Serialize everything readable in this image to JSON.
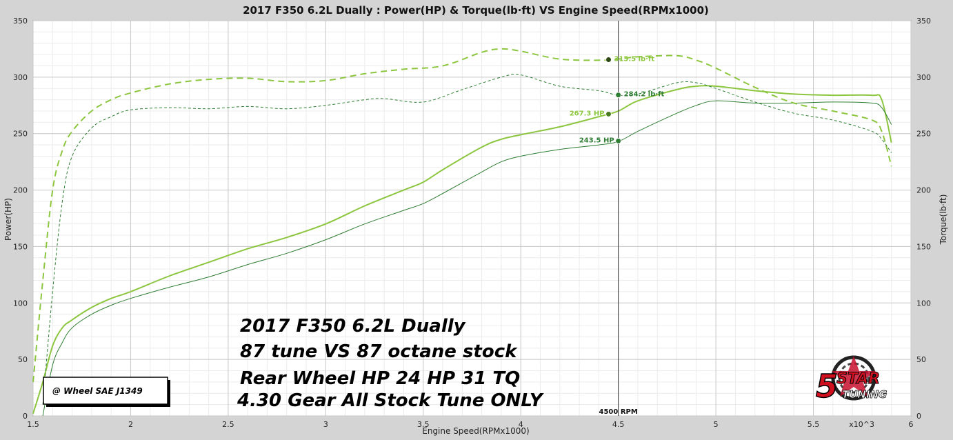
{
  "chart_data": {
    "type": "line",
    "title": "2017 F350 6.2L Dually : Power(HP) & Torque(lb·ft) VS Engine Speed(RPMx1000)",
    "xlabel": "Engine Speed(RPMx1000)",
    "ylabel_left": "Power(HP)",
    "ylabel_right": "Torque(lb·ft)",
    "x_multiplier_label": "x10^3",
    "xlim": [
      1.5,
      6
    ],
    "ylim_left": [
      0,
      350
    ],
    "ylim_right": [
      0,
      350
    ],
    "x_ticks": [
      "1.5",
      "2",
      "2.5",
      "3",
      "3.5",
      "4",
      "4.5",
      "5",
      "5.5",
      "6"
    ],
    "y_ticks": [
      "0",
      "50",
      "100",
      "150",
      "200",
      "250",
      "300",
      "350"
    ],
    "grid": true,
    "legend": "none",
    "colors": {
      "tuned": "#8cc63f",
      "stock": "#2e7d32",
      "cursor": "#333333",
      "plot_bg": "#ffffff",
      "page_bg": "#d4d4d4"
    },
    "series": [
      {
        "name": "87 tune",
        "kind": "power",
        "axis": "left",
        "color": "#8cc63f",
        "style": "solid",
        "width": 2,
        "x": [
          1.5,
          1.55,
          1.6,
          1.65,
          1.7,
          1.8,
          1.9,
          2.0,
          2.2,
          2.4,
          2.6,
          2.8,
          3.0,
          3.2,
          3.4,
          3.5,
          3.6,
          3.8,
          3.9,
          4.0,
          4.2,
          4.4,
          4.5,
          4.6,
          4.8,
          4.9,
          5.0,
          5.2,
          5.4,
          5.6,
          5.8,
          5.85,
          5.9
        ],
        "y": [
          2,
          30,
          62,
          78,
          85,
          96,
          104,
          110,
          124,
          136,
          148,
          158,
          170,
          186,
          200,
          207,
          218,
          238,
          245,
          249,
          256,
          265,
          270,
          279,
          289,
          292,
          292,
          288,
          285,
          284,
          284,
          280,
          242
        ]
      },
      {
        "name": "87 octane stock",
        "kind": "power",
        "axis": "left",
        "color": "#2e7d32",
        "style": "solid",
        "width": 1,
        "x": [
          1.55,
          1.6,
          1.65,
          1.7,
          1.8,
          1.9,
          2.0,
          2.2,
          2.4,
          2.6,
          2.8,
          3.0,
          3.2,
          3.4,
          3.5,
          3.6,
          3.8,
          3.9,
          4.0,
          4.2,
          4.4,
          4.5,
          4.6,
          4.8,
          4.9,
          5.0,
          5.2,
          5.4,
          5.6,
          5.8,
          5.85,
          5.9
        ],
        "y": [
          0,
          45,
          65,
          78,
          90,
          98,
          104,
          114,
          123,
          134,
          144,
          156,
          170,
          182,
          188,
          197,
          216,
          225,
          230,
          236,
          240,
          243,
          252,
          268,
          275,
          279,
          277,
          277,
          278,
          277,
          273,
          258
        ]
      },
      {
        "name": "87 tune",
        "kind": "torque",
        "axis": "right",
        "color": "#8cc63f",
        "style": "dashed",
        "width": 2,
        "x": [
          1.5,
          1.55,
          1.6,
          1.65,
          1.7,
          1.8,
          1.9,
          2.0,
          2.2,
          2.4,
          2.6,
          2.8,
          3.0,
          3.2,
          3.4,
          3.6,
          3.8,
          3.9,
          4.0,
          4.2,
          4.4,
          4.5,
          4.6,
          4.8,
          4.9,
          5.0,
          5.2,
          5.4,
          5.6,
          5.8,
          5.85,
          5.9
        ],
        "y": [
          30,
          120,
          200,
          235,
          252,
          270,
          280,
          286,
          294,
          298,
          299,
          296,
          297,
          303,
          307,
          310,
          322,
          325,
          323,
          316,
          315,
          316,
          318,
          319,
          315,
          308,
          291,
          277,
          270,
          262,
          252,
          221
        ]
      },
      {
        "name": "87 octane stock",
        "kind": "torque",
        "axis": "right",
        "color": "#2e7d32",
        "style": "dashed",
        "width": 1,
        "x": [
          1.55,
          1.6,
          1.65,
          1.7,
          1.8,
          1.9,
          2.0,
          2.2,
          2.4,
          2.6,
          2.8,
          3.0,
          3.2,
          3.3,
          3.5,
          3.7,
          3.9,
          4.0,
          4.2,
          4.4,
          4.5,
          4.6,
          4.8,
          4.9,
          5.0,
          5.2,
          5.4,
          5.6,
          5.8,
          5.85,
          5.9
        ],
        "y": [
          10,
          110,
          190,
          230,
          255,
          265,
          271,
          273,
          272,
          274,
          272,
          275,
          280,
          281,
          278,
          289,
          300,
          302,
          292,
          288,
          284,
          285,
          295,
          295,
          290,
          278,
          268,
          262,
          252,
          245,
          233
        ]
      }
    ],
    "cursor": {
      "x": 4.5,
      "label": "4500 RPM"
    },
    "markers": [
      {
        "x": 4.45,
        "y": 315.5,
        "label": "315.5 lb·ft",
        "color": "#8cc63f",
        "dot": "#2e4a14"
      },
      {
        "x": 4.5,
        "y": 284.2,
        "label": "284.2 lb·ft",
        "color": "#2e7d32",
        "dot": "#2e7d32"
      },
      {
        "x": 4.45,
        "y": 267.3,
        "label": "267.3 HP",
        "color": "#8cc63f",
        "dot": "#4a7a20"
      },
      {
        "x": 4.5,
        "y": 243.5,
        "label": "243.5 HP",
        "color": "#2e7d32",
        "dot": "#2e7d32"
      }
    ]
  },
  "annotations": {
    "lines": [
      "2017 F350 6.2L Dually",
      "87 tune  VS  87 octane stock",
      "Rear Wheel HP 24 HP  31 TQ",
      "4.30 Gear  All Stock Tune ONLY"
    ],
    "badge": "@ Wheel SAE J1349"
  },
  "logo": {
    "text1": "5",
    "text2": "STAR",
    "text3": "TUNING"
  }
}
